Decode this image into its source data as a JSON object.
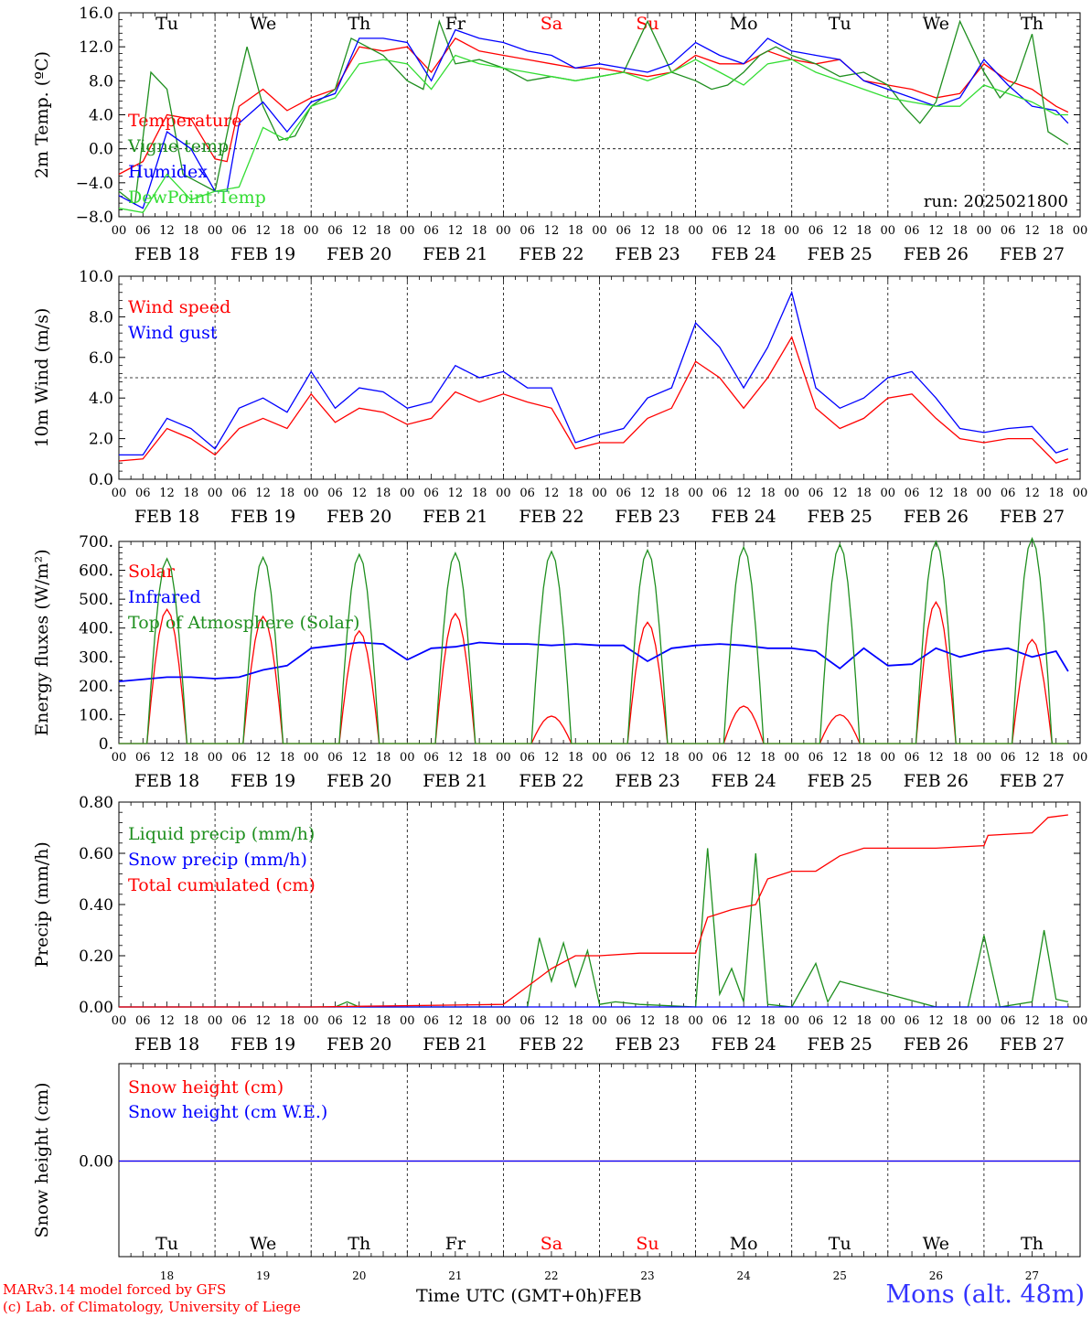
{
  "run_label": "run: 2025021800",
  "days": [
    {
      "dow": "Tu",
      "date": "FEB 18",
      "num": "18",
      "weekend": false
    },
    {
      "dow": "We",
      "date": "FEB 19",
      "num": "19",
      "weekend": false
    },
    {
      "dow": "Th",
      "date": "FEB 20",
      "num": "20",
      "weekend": false
    },
    {
      "dow": "Fr",
      "date": "FEB 21",
      "num": "21",
      "weekend": false
    },
    {
      "dow": "Sa",
      "date": "FEB 22",
      "num": "22",
      "weekend": true
    },
    {
      "dow": "Su",
      "date": "FEB 23",
      "num": "23",
      "weekend": true
    },
    {
      "dow": "Mo",
      "date": "FEB 24",
      "num": "24",
      "weekend": false
    },
    {
      "dow": "Tu",
      "date": "FEB 25",
      "num": "25",
      "weekend": false
    },
    {
      "dow": "We",
      "date": "FEB 26",
      "num": "26",
      "weekend": false
    },
    {
      "dow": "Th",
      "date": "FEB 27",
      "num": "27",
      "weekend": false
    }
  ],
  "hour_ticks": [
    "00",
    "06",
    "12",
    "18"
  ],
  "footer": {
    "model": "MARv3.14 model forced by GFS",
    "credit": "(c) Lab. of Climatology, University of Liege",
    "time_axis": "Time UTC (GMT+0h)",
    "month": "FEB",
    "station": "Mons (alt. 48m)"
  },
  "colors": {
    "red": "#ff0000",
    "green": "#1f8f1f",
    "blue": "#0000ff",
    "lightgreen": "#33dd33",
    "axis": "#000000",
    "weekend": "#ff0000",
    "station": "#3333ff"
  },
  "chart_data": [
    {
      "type": "line",
      "id": "temp",
      "ylabel": "2m Temp. (ºC)",
      "ylim": [
        -8,
        16
      ],
      "yticks": [
        -8,
        -4,
        0,
        4,
        8,
        12,
        16
      ],
      "ytick_labels": [
        "−8.0",
        "−4.0",
        "0.0",
        "4.0",
        "8.0",
        "12.0",
        "16.0"
      ],
      "ref_line": 0,
      "show_dow": true,
      "x_unit": "hours since FEB 18 00 UTC",
      "series": [
        {
          "name": "Temperature",
          "color": "red",
          "x": [
            0,
            6,
            12,
            18,
            24,
            27,
            30,
            36,
            42,
            48,
            54,
            60,
            66,
            72,
            78,
            84,
            90,
            96,
            102,
            108,
            114,
            120,
            126,
            132,
            138,
            144,
            150,
            156,
            162,
            168,
            174,
            180,
            186,
            192,
            198,
            204,
            210,
            216,
            222,
            228,
            234,
            237
          ],
          "y": [
            -3,
            -1.5,
            4,
            3.5,
            -1.2,
            -1.5,
            5,
            7,
            4.5,
            6,
            7,
            12,
            11.5,
            12,
            9,
            13,
            11.5,
            11,
            10.5,
            10,
            9.5,
            9.5,
            9,
            8.5,
            9,
            11,
            10,
            10,
            11.5,
            10.5,
            10,
            10.5,
            8,
            7.5,
            7,
            6,
            6.5,
            10,
            8,
            7,
            5,
            4.3
          ]
        },
        {
          "name": "Vigne temp",
          "color": "green",
          "x": [
            0,
            4,
            8,
            12,
            16,
            20,
            24,
            28,
            32,
            36,
            40,
            44,
            48,
            54,
            58,
            62,
            66,
            72,
            76,
            80,
            84,
            90,
            96,
            102,
            108,
            114,
            120,
            126,
            132,
            138,
            144,
            148,
            152,
            156,
            160,
            164,
            168,
            174,
            180,
            186,
            192,
            196,
            200,
            204,
            210,
            216,
            220,
            224,
            228,
            232,
            237
          ],
          "y": [
            -5,
            -6.5,
            9,
            7,
            -3,
            -4,
            -5,
            4,
            12,
            5,
            1,
            1.5,
            5,
            7,
            13,
            12,
            11,
            8,
            7,
            15,
            10,
            10.5,
            9.5,
            8,
            8.5,
            8,
            8.5,
            9,
            15,
            9,
            8,
            7,
            7.5,
            9,
            11,
            12,
            11,
            10,
            8.5,
            9,
            7.5,
            5,
            3,
            5.5,
            15,
            9,
            6,
            8,
            13.5,
            2,
            0.5
          ]
        },
        {
          "name": "Humidex",
          "color": "blue",
          "x": [
            0,
            6,
            12,
            18,
            24,
            27,
            30,
            36,
            42,
            48,
            54,
            60,
            66,
            72,
            78,
            84,
            90,
            96,
            102,
            108,
            114,
            120,
            126,
            132,
            138,
            144,
            150,
            156,
            162,
            168,
            174,
            180,
            186,
            192,
            198,
            204,
            210,
            216,
            222,
            228,
            234,
            237
          ],
          "y": [
            -5.5,
            -7,
            2,
            0,
            -5,
            -5,
            3,
            5.5,
            2,
            5.5,
            6.5,
            13,
            13,
            12.5,
            8,
            14,
            13,
            12.5,
            11.5,
            11,
            9.5,
            10,
            9.5,
            9,
            10,
            12.5,
            11,
            10,
            13,
            11.5,
            11,
            10.5,
            8,
            7,
            6,
            5,
            6,
            10.5,
            7.5,
            5,
            4.5,
            3
          ]
        },
        {
          "name": "DewPoint Temp",
          "color": "lightgreen",
          "x": [
            0,
            6,
            12,
            18,
            24,
            30,
            36,
            42,
            48,
            54,
            60,
            66,
            72,
            78,
            84,
            90,
            96,
            102,
            108,
            114,
            120,
            126,
            132,
            138,
            144,
            150,
            156,
            162,
            168,
            174,
            180,
            186,
            192,
            198,
            204,
            210,
            216,
            222,
            228,
            234,
            237
          ],
          "y": [
            -7,
            -7.5,
            -3,
            -6,
            -5,
            -4.5,
            2.5,
            1,
            5,
            6,
            10,
            10.5,
            10,
            7,
            11,
            10,
            9.5,
            9,
            8.5,
            8,
            8.5,
            9,
            8,
            9,
            10.5,
            9,
            7.5,
            10,
            10.5,
            9,
            8,
            7,
            6,
            5.5,
            5,
            5,
            7.5,
            6.5,
            5.5,
            4,
            4
          ]
        }
      ]
    },
    {
      "type": "line",
      "id": "wind",
      "ylabel": "10m Wind (m/s)",
      "ylim": [
        0,
        10
      ],
      "yticks": [
        0,
        2,
        4,
        6,
        8,
        10
      ],
      "ytick_labels": [
        "0.0",
        "2.0",
        "4.0",
        "6.0",
        "8.0",
        "10.0"
      ],
      "ref_line": 5,
      "x_unit": "hours since FEB 18 00 UTC",
      "series": [
        {
          "name": "Wind speed",
          "color": "red",
          "x": [
            0,
            6,
            12,
            18,
            24,
            30,
            36,
            42,
            48,
            54,
            60,
            66,
            72,
            78,
            84,
            90,
            96,
            102,
            108,
            114,
            120,
            126,
            132,
            138,
            144,
            150,
            156,
            162,
            168,
            174,
            180,
            186,
            192,
            198,
            204,
            210,
            216,
            222,
            228,
            234,
            237
          ],
          "y": [
            0.9,
            1,
            2.5,
            2,
            1.2,
            2.5,
            3,
            2.5,
            4.2,
            2.8,
            3.5,
            3.3,
            2.7,
            3,
            4.3,
            3.8,
            4.2,
            3.8,
            3.5,
            1.5,
            1.8,
            1.8,
            3,
            3.5,
            5.8,
            5,
            3.5,
            5,
            7,
            3.5,
            2.5,
            3,
            4,
            4.2,
            3,
            2,
            1.8,
            2,
            2,
            0.8,
            1
          ]
        },
        {
          "name": "Wind gust",
          "color": "blue",
          "x": [
            0,
            6,
            12,
            18,
            24,
            30,
            36,
            42,
            48,
            54,
            60,
            66,
            72,
            78,
            84,
            90,
            96,
            102,
            108,
            114,
            120,
            126,
            132,
            138,
            144,
            150,
            156,
            162,
            168,
            174,
            180,
            186,
            192,
            198,
            204,
            210,
            216,
            222,
            228,
            234,
            237
          ],
          "y": [
            1.2,
            1.2,
            3,
            2.5,
            1.5,
            3.5,
            4,
            3.3,
            5.3,
            3.5,
            4.5,
            4.3,
            3.5,
            3.8,
            5.6,
            5,
            5.3,
            4.5,
            4.5,
            1.8,
            2.2,
            2.5,
            4,
            4.5,
            7.7,
            6.5,
            4.5,
            6.5,
            9.2,
            4.5,
            3.5,
            4,
            5,
            5.3,
            4,
            2.5,
            2.3,
            2.5,
            2.6,
            1.3,
            1.5
          ]
        }
      ]
    },
    {
      "type": "line",
      "id": "flux",
      "ylabel": "Energy fluxes (W/m²)",
      "ylim": [
        0,
        700
      ],
      "yticks": [
        0,
        100,
        200,
        300,
        400,
        500,
        600,
        700
      ],
      "ytick_labels": [
        "0.",
        "100.",
        "200.",
        "300.",
        "400.",
        "500.",
        "600.",
        "700."
      ],
      "x_unit": "hours since FEB 18 00 UTC",
      "daylight": {
        "sunrise_h": 7,
        "sunset_h": 17
      },
      "series": [
        {
          "name": "Solar",
          "color": "red",
          "daily_peak": [
            465,
            440,
            390,
            450,
            95,
            420,
            130,
            100,
            490,
            360
          ]
        },
        {
          "name": "Infrared",
          "color": "blue",
          "x": [
            0,
            12,
            18,
            24,
            30,
            36,
            42,
            48,
            54,
            60,
            66,
            72,
            78,
            84,
            90,
            96,
            102,
            108,
            114,
            120,
            126,
            132,
            138,
            144,
            150,
            156,
            162,
            168,
            174,
            180,
            186,
            192,
            198,
            204,
            210,
            216,
            222,
            228,
            234,
            237
          ],
          "y": [
            215,
            230,
            230,
            225,
            230,
            255,
            270,
            330,
            340,
            350,
            345,
            290,
            330,
            335,
            350,
            345,
            345,
            340,
            345,
            340,
            340,
            285,
            330,
            340,
            345,
            340,
            330,
            330,
            320,
            260,
            330,
            270,
            275,
            330,
            300,
            320,
            330,
            300,
            320,
            250
          ]
        },
        {
          "name": "Top of Atmosphere (Solar)",
          "color": "green",
          "daily_peak": [
            640,
            645,
            655,
            660,
            665,
            670,
            680,
            690,
            700,
            710
          ]
        }
      ]
    },
    {
      "type": "line",
      "id": "precip",
      "ylabel": "Precip (mm/h)",
      "ylim": [
        0,
        0.8
      ],
      "yticks": [
        0,
        0.2,
        0.4,
        0.6,
        0.8
      ],
      "ytick_labels": [
        "0.00",
        "0.20",
        "0.40",
        "0.60",
        "0.80"
      ],
      "x_unit": "hours since FEB 18 00 UTC",
      "series": [
        {
          "name": "Liquid precip (mm/h)",
          "color": "green",
          "x": [
            0,
            54,
            57,
            60,
            96,
            102,
            105,
            108,
            111,
            114,
            117,
            120,
            124,
            130,
            144,
            147,
            150,
            153,
            156,
            159,
            162,
            168,
            174,
            177,
            180,
            204,
            212,
            216,
            220,
            228,
            231,
            234,
            237
          ],
          "y": [
            0,
            0,
            0.02,
            0,
            0,
            0,
            0.27,
            0.1,
            0.25,
            0.08,
            0.22,
            0.01,
            0.02,
            0.01,
            0,
            0.62,
            0.05,
            0.15,
            0.02,
            0.6,
            0.01,
            0,
            0.17,
            0.02,
            0.1,
            0,
            0,
            0.28,
            0,
            0.02,
            0.3,
            0.03,
            0.02
          ]
        },
        {
          "name": "Snow precip (mm/h)",
          "color": "blue",
          "x": [
            0,
            237
          ],
          "y": [
            0,
            0
          ]
        },
        {
          "name": "Total cumulated (cm)",
          "color": "red",
          "x": [
            0,
            48,
            96,
            102,
            108,
            114,
            120,
            130,
            144,
            147,
            153,
            159,
            162,
            168,
            174,
            180,
            186,
            192,
            204,
            216,
            217,
            228,
            232,
            237
          ],
          "y": [
            0,
            0,
            0.01,
            0.08,
            0.15,
            0.2,
            0.2,
            0.21,
            0.21,
            0.35,
            0.38,
            0.4,
            0.5,
            0.53,
            0.53,
            0.59,
            0.62,
            0.62,
            0.62,
            0.63,
            0.67,
            0.68,
            0.74,
            0.75
          ]
        }
      ]
    },
    {
      "type": "line",
      "id": "snow",
      "ylabel": "Snow height (cm)",
      "yticks": [
        0
      ],
      "ytick_labels": [
        "0.00"
      ],
      "x_unit": "hours since FEB 18 00 UTC",
      "series": [
        {
          "name": "Snow height (cm)",
          "color": "red",
          "x": [
            0,
            240
          ],
          "y": [
            0,
            0
          ]
        },
        {
          "name": "Snow height (cm W.E.)",
          "color": "blue",
          "x": [
            0,
            240
          ],
          "y": [
            0,
            0
          ]
        }
      ]
    }
  ]
}
